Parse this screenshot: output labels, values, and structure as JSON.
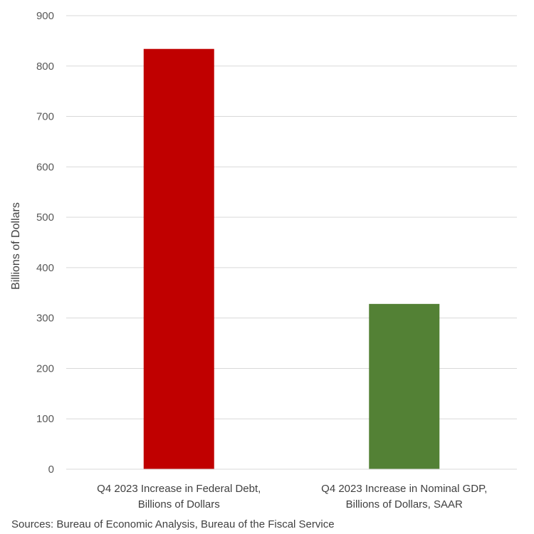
{
  "chart_data": {
    "type": "bar",
    "categories": [
      [
        "Q4 2023 Increase in Federal Debt,",
        "Billions of Dollars"
      ],
      [
        "Q4 2023 Increase in Nominal GDP,",
        "Billions of Dollars, SAAR"
      ]
    ],
    "values": [
      834,
      328
    ],
    "bar_colors": [
      "#C00000",
      "#538135"
    ],
    "ylabel": "Billions of Dollars",
    "xlabel": "",
    "ylim": [
      0,
      900
    ],
    "yticks": [
      0,
      100,
      200,
      300,
      400,
      500,
      600,
      700,
      800,
      900
    ],
    "grid": true,
    "legend": "none"
  },
  "source_note": "Sources: Bureau of Economic Analysis, Bureau of the Fiscal Service"
}
